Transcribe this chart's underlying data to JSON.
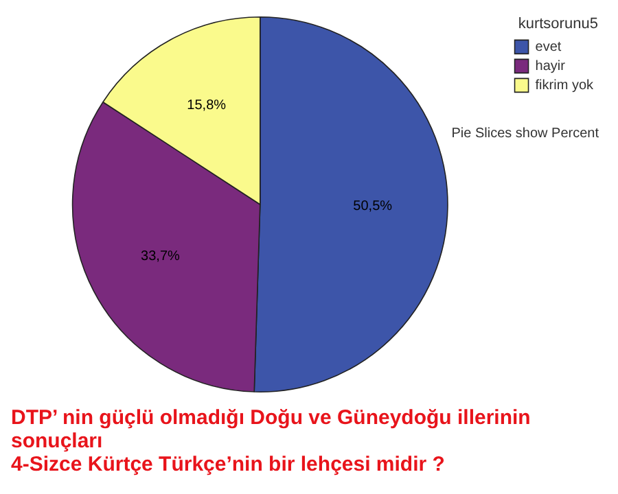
{
  "chart_data": {
    "type": "pie",
    "title": "DTP’ nin güçlü olmadığı Doğu ve Güneydoğu illerinin sonuçları",
    "subtitle": "4-Sizce Kürtçe Türkçe’nin bir lehçesi midir ?",
    "legend_title": "kurtsorunu5",
    "legend": "top right",
    "annotations": [
      "Pie Slices show Percent"
    ],
    "categories": [
      "evet",
      "hayir",
      "fikrim yok"
    ],
    "values": [
      50.5,
      33.7,
      15.8
    ],
    "colors": [
      "#3d55a9",
      "#7a2a7d",
      "#fafa8c"
    ],
    "value_labels": [
      "50,5%",
      "33,7%",
      "15,8%"
    ]
  }
}
